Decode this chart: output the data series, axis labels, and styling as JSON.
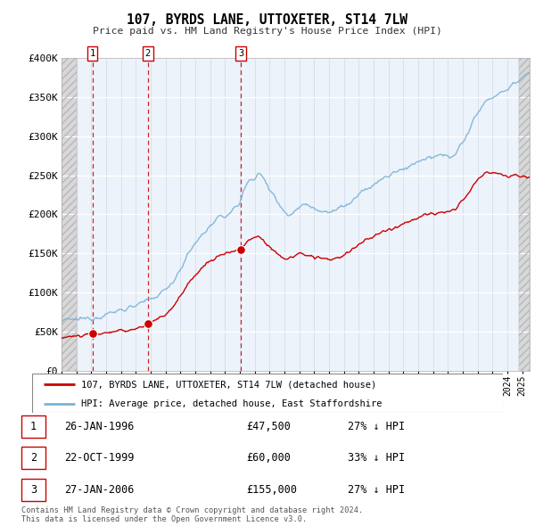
{
  "title": "107, BYRDS LANE, UTTOXETER, ST14 7LW",
  "subtitle": "Price paid vs. HM Land Registry's House Price Index (HPI)",
  "ylim": [
    0,
    400000
  ],
  "yticks": [
    0,
    50000,
    100000,
    150000,
    200000,
    250000,
    300000,
    350000,
    400000
  ],
  "ytick_labels": [
    "£0",
    "£50K",
    "£100K",
    "£150K",
    "£200K",
    "£250K",
    "£300K",
    "£350K",
    "£400K"
  ],
  "hpi_color": "#7ab3d4",
  "price_color": "#cc0000",
  "dashed_line_color": "#cc0000",
  "legend_entries": [
    "107, BYRDS LANE, UTTOXETER, ST14 7LW (detached house)",
    "HPI: Average price, detached house, East Staffordshire"
  ],
  "table_rows": [
    [
      "1",
      "26-JAN-1996",
      "£47,500",
      "27% ↓ HPI"
    ],
    [
      "2",
      "22-OCT-1999",
      "£60,000",
      "33% ↓ HPI"
    ],
    [
      "3",
      "27-JAN-2006",
      "£155,000",
      "27% ↓ HPI"
    ]
  ],
  "footer": "Contains HM Land Registry data © Crown copyright and database right 2024.\nThis data is licensed under the Open Government Licence v3.0.",
  "xlim_start": 1994.0,
  "xlim_end": 2025.5,
  "hatch_left_end": 1995.0,
  "hatch_right_start": 2024.75,
  "sale_dates": [
    1996.07,
    1999.81,
    2006.07
  ],
  "sale_prices": [
    47500,
    60000,
    155000
  ],
  "sale_labels": [
    "1",
    "2",
    "3"
  ]
}
